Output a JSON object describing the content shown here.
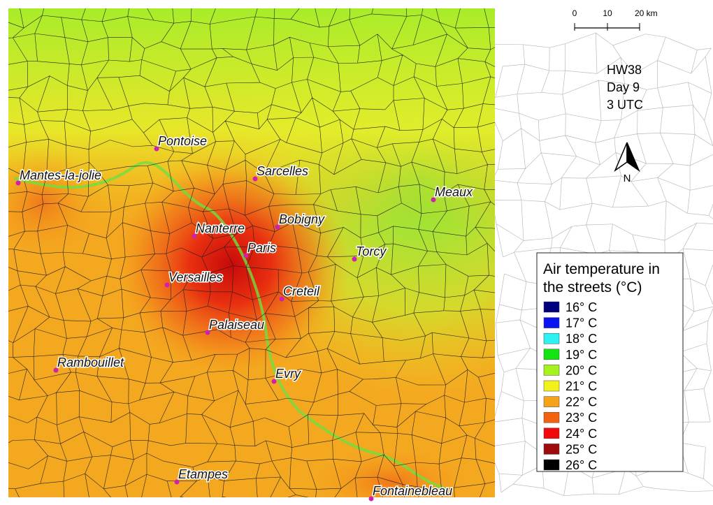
{
  "map": {
    "info": [
      "HW38",
      "Day 9",
      "3 UTC"
    ],
    "north": "N",
    "scale": {
      "labels": [
        "0",
        "10",
        "20 km"
      ]
    },
    "legend": {
      "title_lines": [
        "Air temperature in",
        "the streets (°C)"
      ],
      "entries": [
        {
          "label": "16° C",
          "color": "#00007f"
        },
        {
          "label": "17° C",
          "color": "#0a14f0"
        },
        {
          "label": "18° C",
          "color": "#2ef2f2"
        },
        {
          "label": "19° C",
          "color": "#14e414"
        },
        {
          "label": "20° C",
          "color": "#a6f21c"
        },
        {
          "label": "21° C",
          "color": "#f2f21a"
        },
        {
          "label": "22° C",
          "color": "#f5a41a"
        },
        {
          "label": "23° C",
          "color": "#f2620f"
        },
        {
          "label": "24° C",
          "color": "#f20a0a"
        },
        {
          "label": "25° C",
          "color": "#9e0b0b"
        },
        {
          "label": "26° C",
          "color": "#000000"
        }
      ]
    },
    "cities": [
      {
        "name": "Pontoise"
      },
      {
        "name": "Mantes-la-jolie"
      },
      {
        "name": "Sarcelles"
      },
      {
        "name": "Meaux"
      },
      {
        "name": "Bobigny"
      },
      {
        "name": "Nanterre"
      },
      {
        "name": "Paris"
      },
      {
        "name": "Torcy"
      },
      {
        "name": "Versailles"
      },
      {
        "name": "Creteil"
      },
      {
        "name": "Palaiseau"
      },
      {
        "name": "Rambouillet"
      },
      {
        "name": "Evry"
      },
      {
        "name": "Etampes"
      },
      {
        "name": "Fontainebleau"
      }
    ]
  }
}
